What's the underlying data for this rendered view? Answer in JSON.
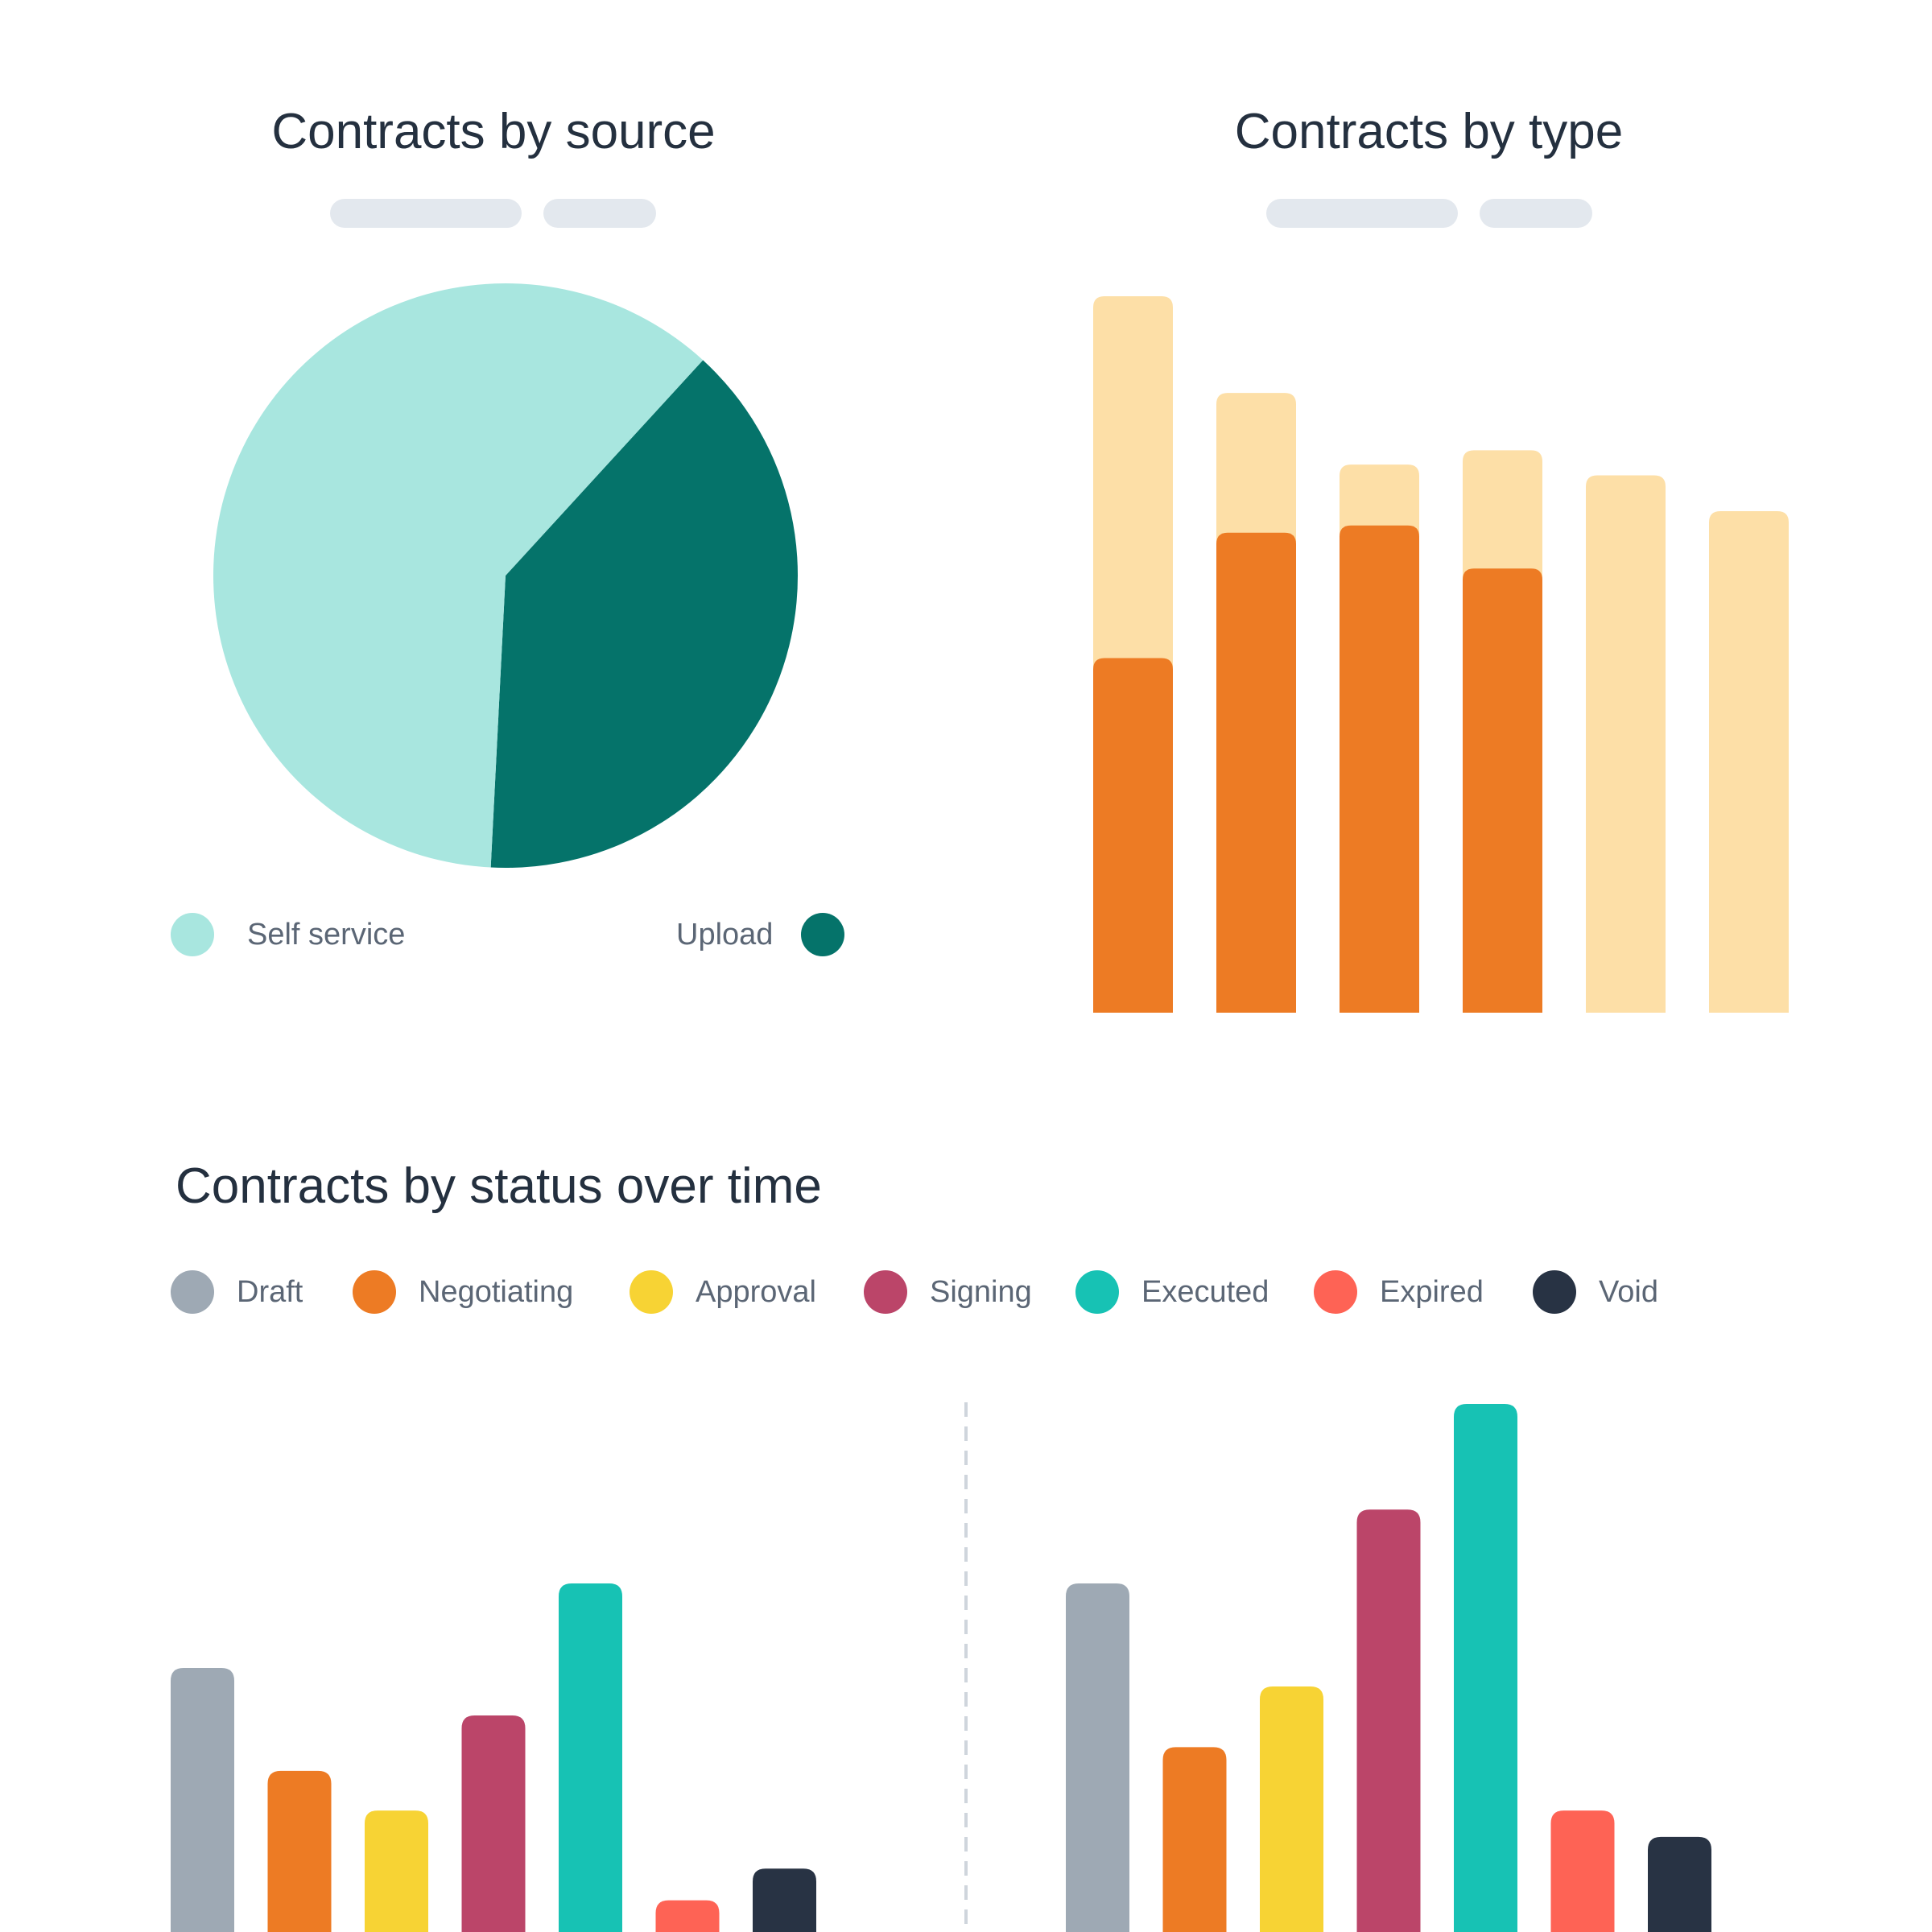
{
  "source_chart": {
    "title": "Contracts by source",
    "legend": [
      {
        "label": "Self service",
        "color": "#a8e6df"
      },
      {
        "label": "Upload",
        "color": "#05736a"
      }
    ]
  },
  "type_chart": {
    "title": "Contracts by type"
  },
  "status_chart": {
    "title": "Contracts by status over time",
    "legend": [
      {
        "label": "Draft",
        "color": "#9ea9b4"
      },
      {
        "label": "Negotiating",
        "color": "#ed7b24"
      },
      {
        "label": "Approval",
        "color": "#f7d334"
      },
      {
        "label": "Signing",
        "color": "#bb4569"
      },
      {
        "label": "Executed",
        "color": "#17c2b4"
      },
      {
        "label": "Expired",
        "color": "#fe6355"
      },
      {
        "label": "Void",
        "color": "#283344"
      }
    ]
  },
  "chart_data": [
    {
      "type": "pie",
      "title": "Contracts by source",
      "slices": [
        {
          "label": "Self service",
          "value": 61,
          "color": "#a8e6df"
        },
        {
          "label": "Upload",
          "value": 39,
          "color": "#05736a"
        }
      ]
    },
    {
      "type": "bar",
      "title": "Contracts by type",
      "stacked": false,
      "ylim": [
        0,
        100
      ],
      "series": [
        {
          "values": [
            100,
            86.5,
            76.5,
            78.5,
            75,
            70
          ],
          "color": "#fddfa7"
        },
        {
          "values": [
            49.5,
            67,
            68,
            62,
            0,
            0
          ],
          "color": "#ed7b24"
        }
      ]
    },
    {
      "type": "bar",
      "title": "Contracts by status over time",
      "categories": [
        "Draft",
        "Negotiating",
        "Approval",
        "Signing",
        "Executed",
        "Expired",
        "Void"
      ],
      "ylim": [
        0,
        100
      ],
      "groups": [
        {
          "values": [
            50,
            30.5,
            23,
            41,
            66,
            6,
            12
          ]
        },
        {
          "values": [
            66,
            35,
            46.5,
            80,
            100,
            23,
            18
          ]
        }
      ]
    }
  ]
}
